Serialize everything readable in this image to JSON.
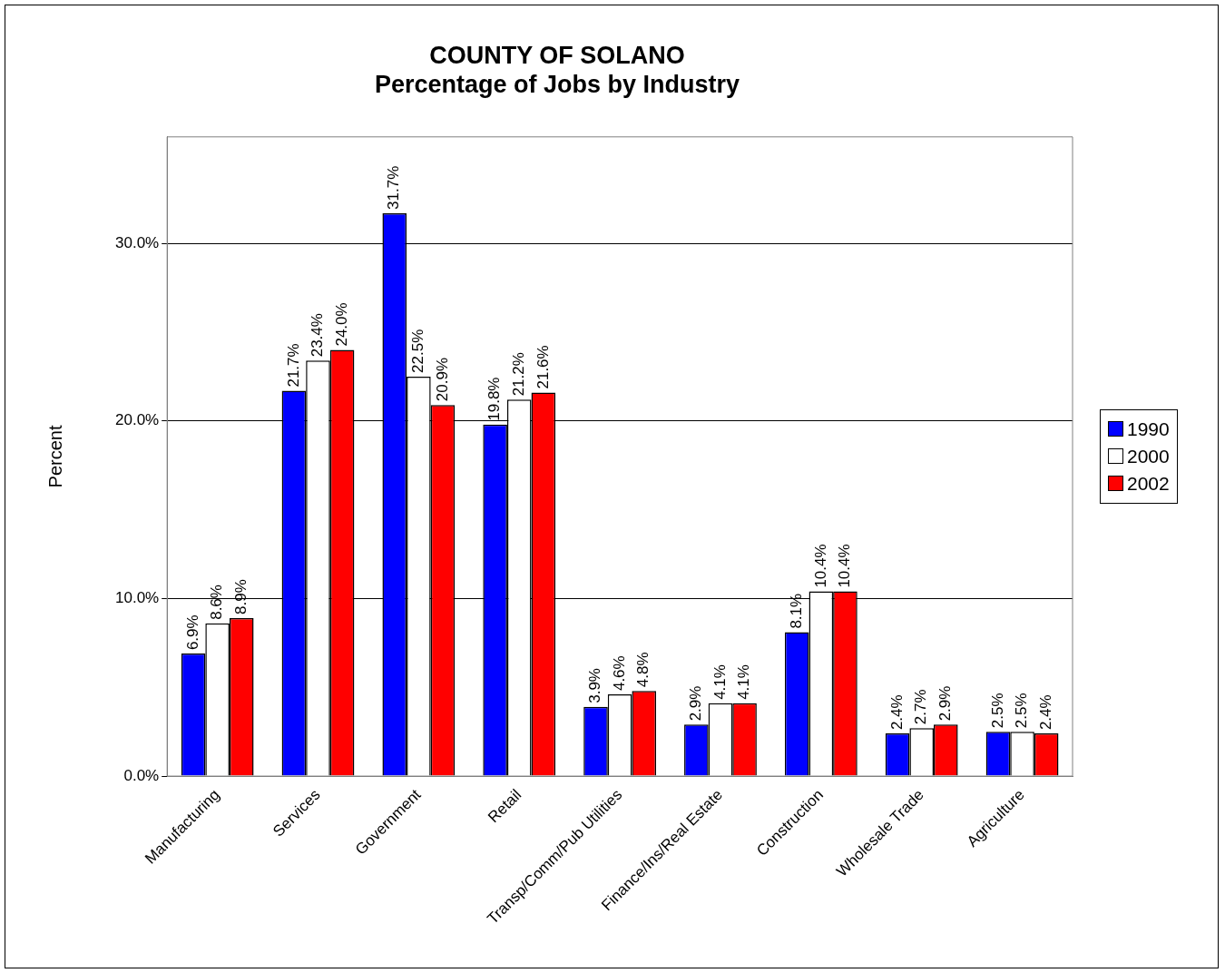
{
  "chart_data": {
    "type": "bar",
    "title": [
      "COUNTY OF SOLANO",
      "Percentage of Jobs by Industry"
    ],
    "ylabel": "Percent",
    "categories": [
      "Manufacturing",
      "Services",
      "Government",
      "Retail",
      "Transp/Comm/Pub Utilities",
      "Finance/Ins/Real Estate",
      "Construction",
      "Wholesale Trade",
      "Agriculture"
    ],
    "series": [
      {
        "name": "1990",
        "color": "#0000ff",
        "values": [
          6.9,
          21.7,
          31.7,
          19.8,
          3.9,
          2.9,
          8.1,
          2.4,
          2.5
        ],
        "value_labels": [
          "6.9%",
          "21.7%",
          "31.7%",
          "19.8%",
          "3.9%",
          "2.9%",
          "8.1%",
          "2.4%",
          "2.5%"
        ]
      },
      {
        "name": "2000",
        "color": "#ffffff",
        "values": [
          8.6,
          23.4,
          22.5,
          21.2,
          4.6,
          4.1,
          10.4,
          2.7,
          2.5
        ],
        "value_labels": [
          "8.6%",
          "23.4%",
          "22.5%",
          "21.2%",
          "4.6%",
          "4.1%",
          "10.4%",
          "2.7%",
          "2.5%"
        ]
      },
      {
        "name": "2002",
        "color": "#ff0000",
        "values": [
          8.9,
          24.0,
          20.9,
          21.6,
          4.8,
          4.1,
          10.4,
          2.9,
          2.4
        ],
        "value_labels": [
          "8.9%",
          "24.0%",
          "20.9%",
          "21.6%",
          "4.8%",
          "4.1%",
          "10.4%",
          "2.9%",
          "2.4%"
        ]
      }
    ],
    "ylim": [
      0,
      36
    ],
    "yticks": [
      {
        "value": 0,
        "label": "0.0%"
      },
      {
        "value": 10,
        "label": "10.0%"
      },
      {
        "value": 20,
        "label": "20.0%"
      },
      {
        "value": 30,
        "label": "30.0%"
      }
    ],
    "grid": "y",
    "legend": "right"
  }
}
